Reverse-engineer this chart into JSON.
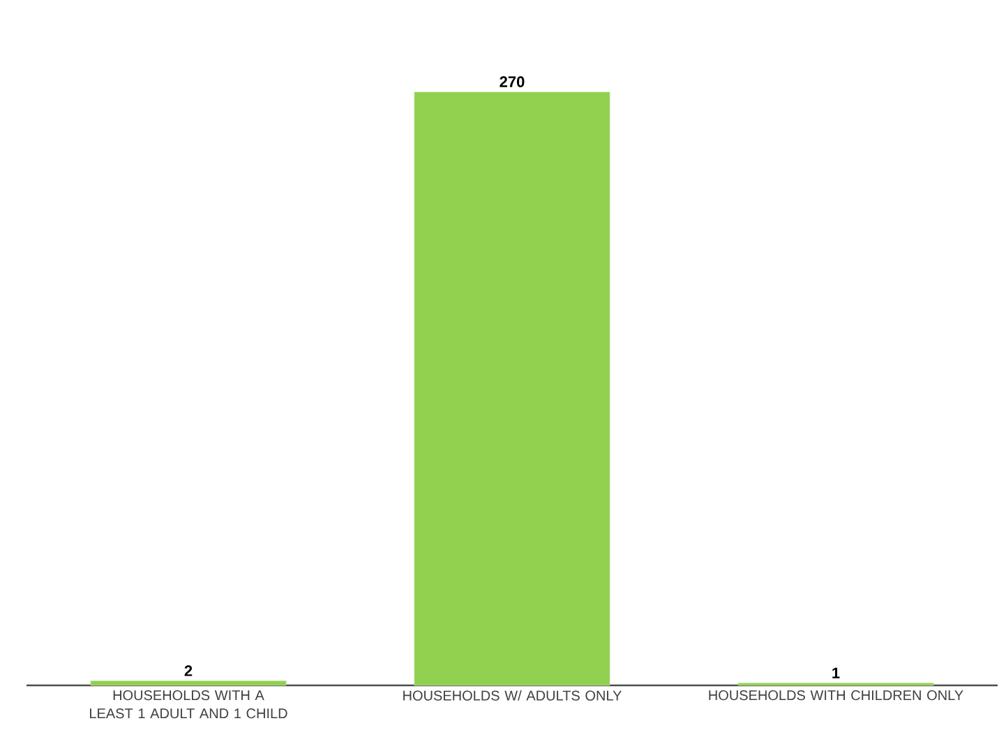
{
  "chart_data": {
    "type": "bar",
    "categories": [
      "HOUSEHOLDS WITH A LEAST 1 ADULT AND 1 CHILD",
      "HOUSEHOLDS W/ ADULTS ONLY",
      "HOUSEHOLDS WITH CHILDREN ONLY"
    ],
    "values": [
      2,
      270,
      1
    ],
    "color": "#92d050",
    "data_labels": true
  }
}
